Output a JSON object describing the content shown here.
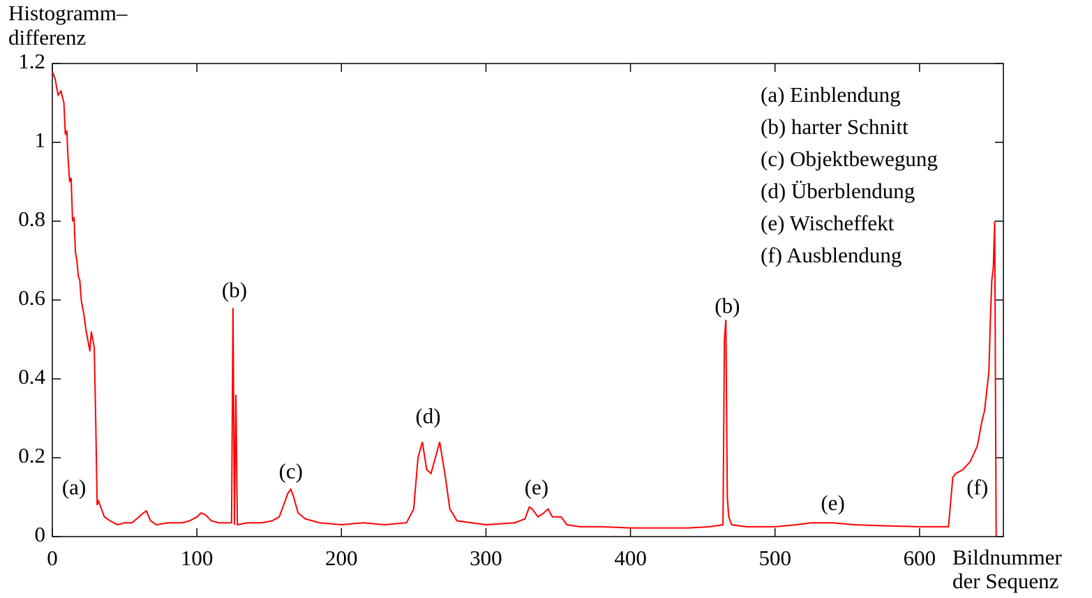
{
  "chart_data": {
    "type": "line",
    "ylabel": [
      "Histogramm–",
      "differenz"
    ],
    "xlabel": [
      "Bildnummer",
      "der Sequenz"
    ],
    "legend_text": [
      "(a) Einblendung",
      "(b) harter Schnitt",
      "(c) Objektbewegung",
      "(d) Überblendung",
      "(e) Wischeffekt",
      "(f) Ausblendung"
    ],
    "annotations": [
      {
        "text": "(a)",
        "x": 15,
        "y": 0.12
      },
      {
        "text": "(b)",
        "x": 126,
        "y": 0.62
      },
      {
        "text": "(c)",
        "x": 165,
        "y": 0.16
      },
      {
        "text": "(d)",
        "x": 260,
        "y": 0.3
      },
      {
        "text": "(e)",
        "x": 335,
        "y": 0.12
      },
      {
        "text": "(b)",
        "x": 467,
        "y": 0.58
      },
      {
        "text": "(e)",
        "x": 540,
        "y": 0.08
      },
      {
        "text": "(f)",
        "x": 640,
        "y": 0.12
      }
    ],
    "xlim": [
      0,
      658
    ],
    "ylim": [
      0,
      1.2
    ],
    "xticks": [
      0,
      100,
      200,
      300,
      400,
      500,
      600
    ],
    "yticks": [
      0,
      0.2,
      0.4,
      0.6,
      0.8,
      1,
      1.2
    ],
    "series": [
      {
        "color": "#ff0000",
        "x": [
          0,
          2,
          4,
          6,
          8,
          9,
          10,
          11,
          12,
          13,
          14,
          15,
          16,
          17,
          18,
          19,
          20,
          21,
          22,
          23,
          24,
          25,
          26,
          27,
          28,
          29,
          30,
          31,
          32,
          34,
          36,
          40,
          45,
          50,
          55,
          60,
          63,
          65,
          68,
          72,
          80,
          90,
          95,
          100,
          103,
          106,
          110,
          115,
          120,
          124,
          125,
          126,
          127,
          128,
          135,
          145,
          152,
          157,
          160,
          163,
          165,
          167,
          170,
          175,
          185,
          200,
          215,
          230,
          245,
          250,
          253,
          256,
          259,
          262,
          265,
          268,
          272,
          275,
          280,
          290,
          300,
          320,
          327,
          330,
          332,
          336,
          340,
          343,
          346,
          352,
          356,
          365,
          380,
          400,
          420,
          440,
          455,
          464,
          465,
          466,
          467,
          468,
          470,
          480,
          500,
          515,
          525,
          540,
          555,
          570,
          600,
          620,
          623,
          625,
          630,
          635,
          640,
          643,
          645,
          648,
          649,
          650,
          651,
          652,
          653
        ],
        "values": [
          1.18,
          1.16,
          1.12,
          1.13,
          1.1,
          1.02,
          1.03,
          0.95,
          0.9,
          0.91,
          0.8,
          0.81,
          0.72,
          0.7,
          0.66,
          0.65,
          0.6,
          0.58,
          0.56,
          0.53,
          0.51,
          0.49,
          0.47,
          0.52,
          0.5,
          0.48,
          0.3,
          0.08,
          0.09,
          0.07,
          0.05,
          0.04,
          0.03,
          0.035,
          0.035,
          0.05,
          0.06,
          0.065,
          0.04,
          0.03,
          0.035,
          0.035,
          0.04,
          0.05,
          0.06,
          0.055,
          0.04,
          0.035,
          0.035,
          0.035,
          0.58,
          0.03,
          0.36,
          0.03,
          0.035,
          0.035,
          0.04,
          0.05,
          0.08,
          0.11,
          0.12,
          0.1,
          0.06,
          0.045,
          0.035,
          0.03,
          0.035,
          0.03,
          0.035,
          0.07,
          0.2,
          0.24,
          0.17,
          0.16,
          0.2,
          0.24,
          0.15,
          0.07,
          0.04,
          0.035,
          0.03,
          0.035,
          0.045,
          0.075,
          0.07,
          0.05,
          0.06,
          0.07,
          0.05,
          0.05,
          0.03,
          0.025,
          0.025,
          0.022,
          0.022,
          0.022,
          0.025,
          0.03,
          0.5,
          0.55,
          0.1,
          0.05,
          0.03,
          0.025,
          0.025,
          0.03,
          0.035,
          0.035,
          0.03,
          0.028,
          0.025,
          0.025,
          0.15,
          0.16,
          0.17,
          0.19,
          0.23,
          0.29,
          0.32,
          0.42,
          0.55,
          0.65,
          0.68,
          0.8,
          0
        ]
      }
    ]
  }
}
